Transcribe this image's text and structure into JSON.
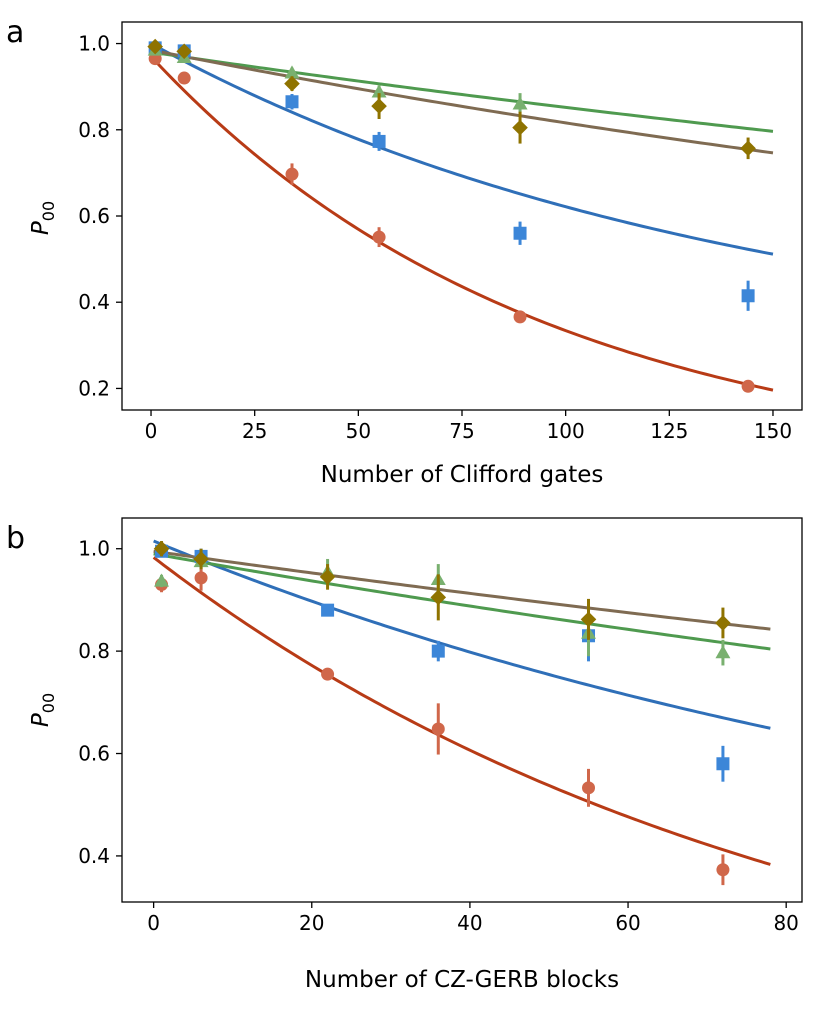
{
  "chart_data": [
    {
      "type": "scatter",
      "panel_label": "a",
      "xlabel": "Number of Clifford gates",
      "ylabel": "P",
      "ylabel_sub": "00",
      "xlim": [
        -7,
        157
      ],
      "ylim": [
        0.15,
        1.05
      ],
      "xticks": [
        0,
        25,
        50,
        75,
        100,
        125,
        150
      ],
      "xtick_labels": [
        "0",
        "25",
        "50",
        "75",
        "100",
        "125",
        "150"
      ],
      "yticks": [
        0.2,
        0.4,
        0.6,
        0.8,
        1.0
      ],
      "ytick_labels": [
        "0.2",
        "0.4",
        "0.6",
        "0.8",
        "1.0"
      ],
      "grid": false,
      "fit_range": [
        0,
        150
      ],
      "series": [
        {
          "name": "series-orange",
          "marker": "circle",
          "point_color": "#d0674a",
          "line_color": "#b83b16",
          "x": [
            1,
            8,
            34,
            55,
            89,
            144
          ],
          "y": [
            0.965,
            0.92,
            0.697,
            0.551,
            0.366,
            0.205
          ],
          "err": [
            0.008,
            0.01,
            0.025,
            0.023,
            0.013,
            0.012
          ],
          "fit": {
            "a": 0.97,
            "p": 0.9894,
            "b": 0.0
          }
        },
        {
          "name": "series-blue",
          "marker": "square",
          "point_color": "#3c86d8",
          "line_color": "#2f6fb8",
          "x": [
            1,
            8,
            34,
            55,
            89,
            144
          ],
          "y": [
            0.99,
            0.983,
            0.865,
            0.773,
            0.56,
            0.415
          ],
          "err": [
            0.006,
            0.008,
            0.018,
            0.022,
            0.027,
            0.035
          ],
          "fit": {
            "a": 0.75,
            "p": 0.993,
            "b": 0.25
          }
        },
        {
          "name": "series-green",
          "marker": "triangle",
          "point_color": "#79b06f",
          "line_color": "#4f9a4f",
          "x": [
            1,
            8,
            34,
            55,
            89
          ],
          "y": [
            0.985,
            0.968,
            0.932,
            0.888,
            0.86
          ],
          "err": [
            0.006,
            0.008,
            0.012,
            0.015,
            0.025
          ],
          "fit": {
            "a": 0.75,
            "p": 0.99813,
            "b": 0.23
          }
        },
        {
          "name": "series-gold",
          "marker": "diamond",
          "point_color": "#8f7300",
          "line_color": "#7f6b52",
          "x": [
            1,
            8,
            34,
            55,
            89,
            144
          ],
          "y": [
            0.993,
            0.982,
            0.907,
            0.855,
            0.805,
            0.757
          ],
          "err": [
            0.006,
            0.008,
            0.017,
            0.03,
            0.037,
            0.025
          ],
          "fit": {
            "a": 0.75,
            "p": 0.99745,
            "b": 0.235
          }
        }
      ]
    },
    {
      "type": "scatter",
      "panel_label": "b",
      "xlabel": "Number of CZ-GERB blocks",
      "ylabel": "P",
      "ylabel_sub": "00",
      "xlim": [
        -4,
        82
      ],
      "ylim": [
        0.31,
        1.06
      ],
      "xticks": [
        0,
        20,
        40,
        60,
        80
      ],
      "xtick_labels": [
        "0",
        "20",
        "40",
        "60",
        "80"
      ],
      "yticks": [
        0.4,
        0.6,
        0.8,
        1.0
      ],
      "ytick_labels": [
        "0.4",
        "0.6",
        "0.8",
        "1.0"
      ],
      "grid": false,
      "fit_range": [
        0,
        78
      ],
      "series": [
        {
          "name": "series-orange",
          "marker": "circle",
          "point_color": "#d0674a",
          "line_color": "#b83b16",
          "x": [
            1,
            6,
            22,
            36,
            55,
            72
          ],
          "y": [
            0.93,
            0.943,
            0.755,
            0.648,
            0.533,
            0.373
          ],
          "err": [
            0.015,
            0.025,
            0.01,
            0.05,
            0.037,
            0.03
          ],
          "fit": {
            "a": 0.983,
            "p": 0.988,
            "b": 0.0
          }
        },
        {
          "name": "series-blue",
          "marker": "square",
          "point_color": "#3c86d8",
          "line_color": "#2f6fb8",
          "x": [
            1,
            6,
            22,
            36,
            55,
            72
          ],
          "y": [
            0.995,
            0.985,
            0.88,
            0.8,
            0.83,
            0.58
          ],
          "err": [
            0.01,
            0.015,
            0.012,
            0.02,
            0.05,
            0.035
          ],
          "fit": {
            "a": 0.765,
            "p": 0.9917,
            "b": 0.25
          }
        },
        {
          "name": "series-green",
          "marker": "triangle",
          "point_color": "#79b06f",
          "line_color": "#4f9a4f",
          "x": [
            1,
            6,
            22,
            36,
            55,
            72
          ],
          "y": [
            0.937,
            0.975,
            0.955,
            0.94,
            0.835,
            0.797
          ],
          "err": [
            0.012,
            0.015,
            0.025,
            0.03,
            0.045,
            0.025
          ],
          "fit": {
            "a": 0.74,
            "p": 0.9963,
            "b": 0.25
          }
        },
        {
          "name": "series-gold",
          "marker": "diamond",
          "point_color": "#8f7300",
          "line_color": "#7f6b52",
          "x": [
            1,
            6,
            22,
            36,
            55,
            72
          ],
          "y": [
            1.0,
            0.98,
            0.945,
            0.905,
            0.862,
            0.855
          ],
          "err": [
            0.015,
            0.02,
            0.025,
            0.045,
            0.04,
            0.03
          ],
          "fit": {
            "a": 0.75,
            "p": 0.9971,
            "b": 0.245
          }
        }
      ]
    }
  ]
}
